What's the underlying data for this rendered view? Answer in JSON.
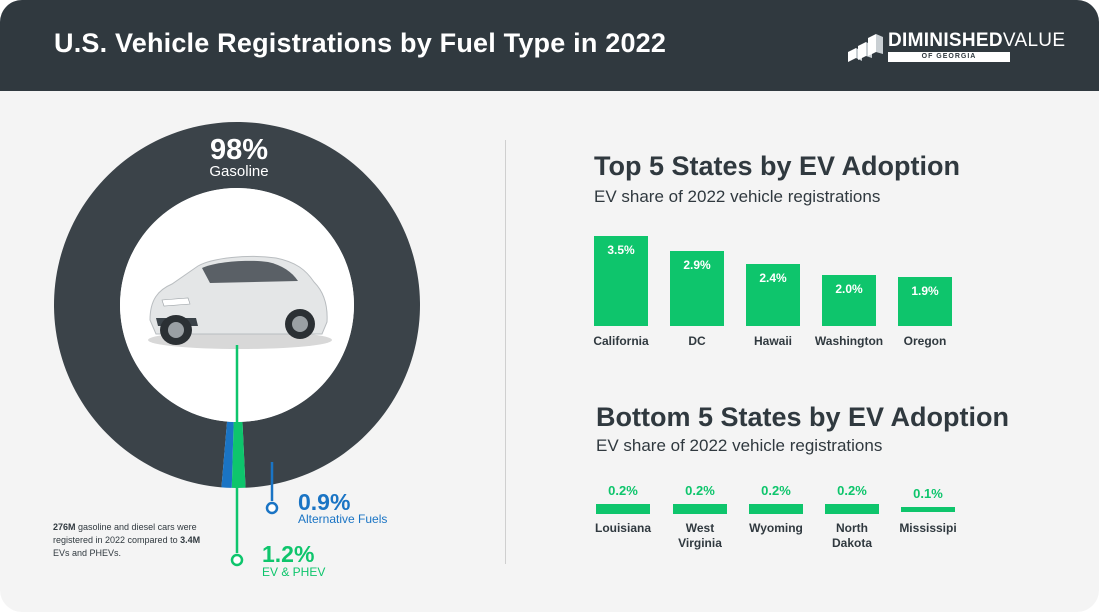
{
  "header": {
    "title": "U.S. Vehicle Registrations by Fuel Type in 2022",
    "logo_main": "DIMINISHED",
    "logo_main_thin": "VALUE",
    "logo_sub": "OF GEORGIA"
  },
  "colors": {
    "header_bg": "#30393f",
    "gasoline": "#3b4349",
    "ev_phev": "#0ec56c",
    "alternative": "#1a74c4",
    "background": "#f4f4f4"
  },
  "donut": {
    "gasoline_pct": "98%",
    "gasoline_label": "Gasoline",
    "alternative_pct": "0.9%",
    "alternative_label": "Alternative Fuels",
    "ev_pct": "1.2%",
    "ev_label": "EV & PHEV",
    "note_gas_count": "276M",
    "note_part1": " gasoline and diesel cars were registered in 2022 compared to ",
    "note_ev_count": "3.4M",
    "note_part2": " EVs and PHEVs."
  },
  "chart_data": [
    {
      "type": "pie",
      "categories": [
        "Gasoline",
        "EV & PHEV",
        "Alternative Fuels"
      ],
      "values": [
        98,
        1.2,
        0.9
      ]
    },
    {
      "type": "bar",
      "title": "Top 5 States by EV Adoption",
      "subtitle": "EV share of 2022 vehicle registrations",
      "categories": [
        "California",
        "DC",
        "Hawaii",
        "Washington",
        "Oregon"
      ],
      "values": [
        3.5,
        2.9,
        2.4,
        2.0,
        1.9
      ],
      "labels": [
        "3.5%",
        "2.9%",
        "2.4%",
        "2.0%",
        "1.9%"
      ]
    },
    {
      "type": "bar",
      "title": "Bottom 5 States by EV Adoption",
      "subtitle": "EV share of 2022 vehicle registrations",
      "categories": [
        "Louisiana",
        "West Virginia",
        "Wyoming",
        "North Dakota",
        "Mississipi"
      ],
      "values": [
        0.2,
        0.2,
        0.2,
        0.2,
        0.1
      ],
      "labels": [
        "0.2%",
        "0.2%",
        "0.2%",
        "0.2%",
        "0.1%"
      ]
    }
  ]
}
